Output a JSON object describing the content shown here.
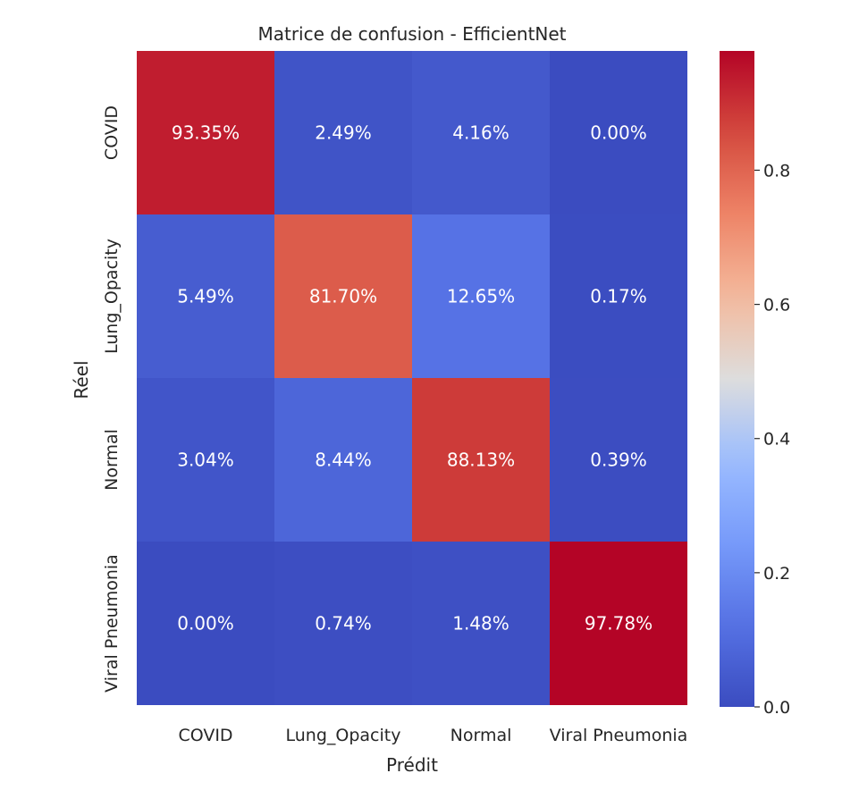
{
  "chart_data": {
    "type": "heatmap",
    "title": "Matrice de confusion - EfficientNet",
    "xlabel": "Prédit",
    "ylabel": "Réel",
    "x_categories": [
      "COVID",
      "Lung_Opacity",
      "Normal",
      "Viral Pneumonia"
    ],
    "y_categories": [
      "COVID",
      "Lung_Opacity",
      "Normal",
      "Viral Pneumonia"
    ],
    "values": [
      [
        0.9335,
        0.0249,
        0.0416,
        0.0
      ],
      [
        0.0549,
        0.817,
        0.1265,
        0.0017
      ],
      [
        0.0304,
        0.0844,
        0.8813,
        0.0039
      ],
      [
        0.0,
        0.0074,
        0.0148,
        0.9778
      ]
    ],
    "annotations": [
      [
        "93.35%",
        "2.49%",
        "4.16%",
        "0.00%"
      ],
      [
        "5.49%",
        "81.70%",
        "12.65%",
        "0.17%"
      ],
      [
        "3.04%",
        "8.44%",
        "88.13%",
        "0.39%"
      ],
      [
        "0.00%",
        "0.74%",
        "1.48%",
        "97.78%"
      ]
    ],
    "colormap": "coolwarm",
    "colorbar": {
      "vmin": 0.0,
      "vmax": 0.9778,
      "ticks": [
        0.0,
        0.2,
        0.4,
        0.6,
        0.8
      ],
      "tick_labels": [
        "0.0",
        "0.2",
        "0.4",
        "0.6",
        "0.8"
      ]
    },
    "annotation_color": "#ffffff"
  }
}
